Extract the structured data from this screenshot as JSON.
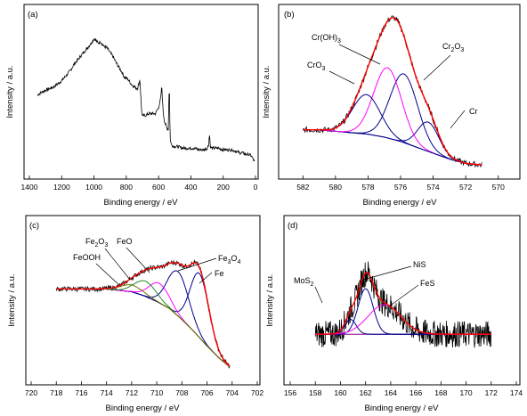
{
  "chart_data": [
    {
      "panel": "(a)",
      "type": "line",
      "xlabel": "Binding energy / eV",
      "ylabel": "Intensity / a.u.",
      "xlim": [
        1400,
        0
      ],
      "x_reversed": true,
      "xticks": [
        1400,
        1200,
        1000,
        800,
        600,
        400,
        200,
        0
      ],
      "ylim": [
        0,
        100
      ],
      "series": [
        {
          "color": "#000000",
          "noise": 1.0,
          "x": [
            1350,
            1300,
            1250,
            1200,
            1150,
            1120,
            1080,
            1040,
            1010,
            1000,
            990,
            975,
            960,
            940,
            920,
            900,
            880,
            860,
            830,
            810,
            790,
            770,
            750,
            730,
            720,
            715,
            710,
            705,
            700,
            690,
            680,
            660,
            640,
            620,
            600,
            590,
            585,
            580,
            575,
            570,
            565,
            560,
            550,
            540,
            535,
            533,
            531,
            528,
            520,
            500,
            480,
            450,
            420,
            400,
            380,
            350,
            320,
            300,
            290,
            285,
            282,
            280,
            270,
            250,
            230,
            200,
            170,
            150,
            120,
            100,
            80,
            60,
            40,
            25,
            15,
            5
          ],
          "y": [
            52,
            55,
            57,
            61,
            67,
            72,
            77,
            82,
            86,
            88,
            87,
            85,
            86,
            83,
            82,
            79,
            76,
            72,
            67,
            63,
            62,
            59,
            57,
            56,
            60,
            62,
            50,
            42,
            38,
            39,
            39,
            40,
            40,
            40,
            44,
            48,
            52,
            58,
            46,
            40,
            36,
            34,
            31,
            30,
            54,
            56,
            40,
            24,
            20,
            19,
            19,
            18,
            18,
            18,
            18,
            17,
            17,
            18,
            20,
            27,
            23,
            19,
            18,
            18,
            18,
            17,
            17,
            17,
            16,
            15,
            15,
            14,
            14,
            13,
            11,
            9
          ]
        }
      ]
    },
    {
      "panel": "(b)",
      "type": "line",
      "xlabel": "Binding energy / eV",
      "ylabel": "Intensity / a.u.",
      "xlim": [
        583,
        569
      ],
      "x_reversed": true,
      "xticks": [
        582,
        580,
        578,
        576,
        574,
        572,
        570
      ],
      "ylim": [
        0,
        100
      ],
      "baseline": {
        "color": "#00008b",
        "x": [
          582,
          581,
          580,
          579,
          578,
          577,
          576,
          575,
          574,
          573,
          572,
          571
        ],
        "y": [
          27,
          27,
          26,
          25,
          24,
          22,
          19,
          15,
          11,
          7,
          4,
          3
        ]
      },
      "peaks": [
        {
          "label": "Cr",
          "center": 574.3,
          "height": 20,
          "width": 0.65,
          "color": "#00008b"
        },
        {
          "label": "Cr2O3",
          "center": 575.8,
          "height": 47,
          "width": 0.85,
          "color": "#00008b"
        },
        {
          "label": "Cr(OH)3",
          "center": 576.8,
          "height": 48,
          "width": 0.85,
          "color": "#ff00ff"
        },
        {
          "label": "CrO3",
          "center": 578.1,
          "height": 27,
          "width": 0.85,
          "color": "#00008b"
        }
      ],
      "envelope": {
        "color": "#ff0000",
        "noise": 2.0
      },
      "annotations": [
        {
          "text": "Cr",
          "sub": ""
        },
        {
          "text": "Cr",
          "sub": "2",
          "text2": "O",
          "sub2": "3"
        },
        {
          "text": "Cr(OH)",
          "sub": "3"
        },
        {
          "text": "CrO",
          "sub": "3"
        }
      ]
    },
    {
      "panel": "(c)",
      "type": "line",
      "xlabel": "Binding energy / eV",
      "ylabel": "Intensity / a.u.",
      "xlim": [
        720,
        702
      ],
      "x_reversed": true,
      "xticks": [
        720,
        718,
        716,
        714,
        712,
        710,
        708,
        706,
        704,
        702
      ],
      "ylim": [
        0,
        100
      ],
      "baseline": {
        "color": "#6b6b00",
        "x": [
          718,
          716,
          714,
          712,
          711,
          710,
          709,
          708,
          707,
          706,
          705,
          704.2
        ],
        "y": [
          60,
          60,
          60,
          58,
          55,
          51,
          46,
          38,
          29,
          19,
          10,
          4
        ]
      },
      "peaks": [
        {
          "label": "Fe",
          "center": 706.6,
          "height": 46,
          "width": 0.75,
          "color": "#00008b"
        },
        {
          "label": "Fe3O4",
          "center": 708.3,
          "height": 32,
          "width": 0.85,
          "color": "#00008b"
        },
        {
          "label": "FeO",
          "center": 709.8,
          "height": 14,
          "width": 0.8,
          "color": "#ff00ff"
        },
        {
          "label": "Fe2O3",
          "center": 710.9,
          "height": 11,
          "width": 0.85,
          "color": "#228b22"
        },
        {
          "label": "FeOOH",
          "center": 712.0,
          "height": 5,
          "width": 0.9,
          "color": "#6b6b00"
        }
      ],
      "envelope": {
        "color": "#ff0000",
        "noise": 1.8
      },
      "annotations": [
        {
          "text": "Fe",
          "sub": ""
        },
        {
          "text": "Fe",
          "sub": "3",
          "text2": "O",
          "sub2": "4"
        },
        {
          "text": "FeO",
          "sub": ""
        },
        {
          "text": "Fe",
          "sub": "2",
          "text2": "O",
          "sub2": "3"
        },
        {
          "text": "FeOOH",
          "sub": ""
        }
      ]
    },
    {
      "panel": "(d)",
      "type": "line",
      "xlabel": "Binding energy / eV",
      "ylabel": "Intensity / a.u.",
      "xlim": [
        156,
        174
      ],
      "x_reversed": false,
      "xticks": [
        156,
        158,
        160,
        162,
        164,
        166,
        168,
        170,
        172,
        174
      ],
      "ylim": [
        0,
        100
      ],
      "baseline": {
        "color": "#8b008b",
        "x": [
          158,
          160,
          162,
          164,
          166,
          168,
          170,
          172
        ],
        "y": [
          18,
          18,
          18,
          18,
          18,
          18,
          18,
          18
        ]
      },
      "peaks": [
        {
          "label": "MoS2",
          "center": 160.8,
          "height": 12,
          "width": 0.45,
          "color": "#00008b"
        },
        {
          "label": "NiS",
          "center": 162.0,
          "height": 37,
          "width": 0.6,
          "color": "#00008b"
        },
        {
          "label": "FeS",
          "center": 163.5,
          "height": 24,
          "width": 1.3,
          "color": "#ff00ff"
        }
      ],
      "envelope": {
        "color": "#ff0000",
        "noise": 11.0
      },
      "annotations": [
        {
          "text": "MoS",
          "sub": "2"
        },
        {
          "text": "NiS",
          "sub": ""
        },
        {
          "text": "FeS",
          "sub": ""
        }
      ]
    }
  ]
}
